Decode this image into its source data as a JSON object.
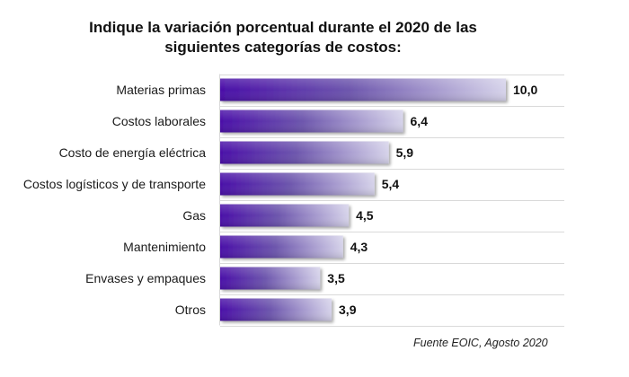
{
  "chart_data": {
    "type": "bar",
    "orientation": "horizontal",
    "title_lines": [
      "Indique la variación porcentual durante el 2020 de las",
      "siguientes categorías de costos:"
    ],
    "categories": [
      "Materias primas",
      "Costos laborales",
      "Costo de energía eléctrica",
      "Costos logísticos y de transporte",
      "Gas",
      "Mantenimiento",
      "Envases y empaques",
      "Otros"
    ],
    "values": [
      10.0,
      6.4,
      5.9,
      5.4,
      4.5,
      4.3,
      3.5,
      3.9
    ],
    "value_labels": [
      "10,0",
      "6,4",
      "5,9",
      "5,4",
      "4,5",
      "4,3",
      "3,5",
      "3,9"
    ],
    "xlim": [
      0,
      10
    ],
    "grid": true,
    "source": "Fuente EOIC, Agosto 2020"
  }
}
